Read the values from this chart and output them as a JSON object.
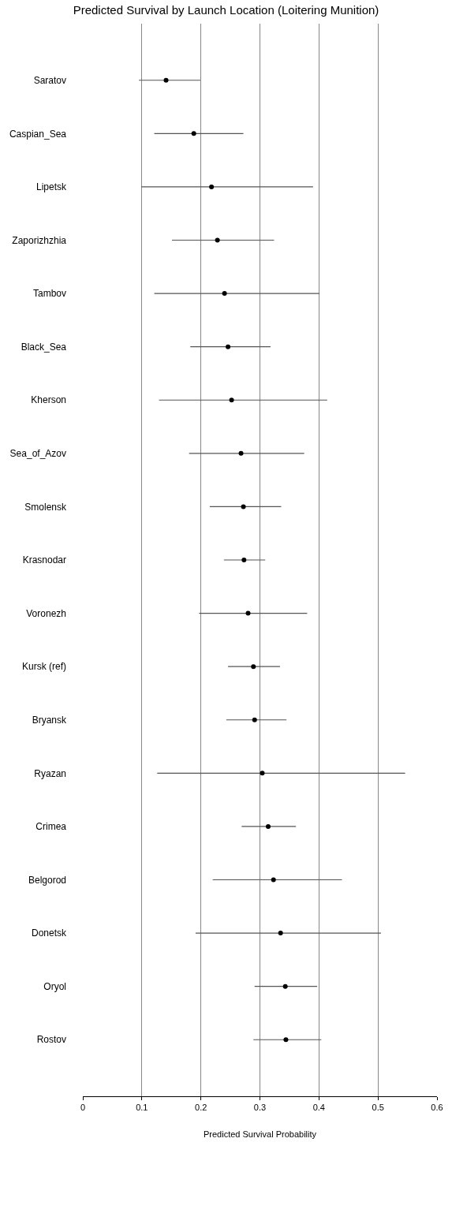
{
  "chart_data": {
    "type": "scatter",
    "title": "Predicted Survival by Launch Location (Loitering Munition)",
    "xlabel": "Predicted Survival Probability",
    "orientation": "horizontal",
    "categories": [
      "Saratov",
      "Caspian_Sea",
      "Lipetsk",
      "Zaporizhzhia",
      "Tambov",
      "Black_Sea",
      "Kherson",
      "Sea_of_Azov",
      "Smolensk",
      "Krasnodar",
      "Voronezh",
      "Kursk (ref)",
      "Bryansk",
      "Ryazan",
      "Crimea",
      "Belgorod",
      "Donetsk",
      "Oryol",
      "Rostov"
    ],
    "series": [
      {
        "color": "#000000",
        "values": [
          0.141,
          0.188,
          0.218,
          0.228,
          0.24,
          0.246,
          0.252,
          0.268,
          0.272,
          0.273,
          0.28,
          0.289,
          0.291,
          0.304,
          0.314,
          0.323,
          0.335,
          0.343,
          0.344
        ],
        "errors": [
          [
            0.095,
            0.199
          ],
          [
            0.121,
            0.272
          ],
          [
            0.099,
            0.39
          ],
          [
            0.151,
            0.324
          ],
          [
            0.121,
            0.401
          ],
          [
            0.182,
            0.318
          ],
          [
            0.129,
            0.414
          ],
          [
            0.18,
            0.375
          ],
          [
            0.215,
            0.336
          ],
          [
            0.239,
            0.309
          ],
          [
            0.197,
            0.38
          ],
          [
            0.246,
            0.334
          ],
          [
            0.243,
            0.345
          ],
          [
            0.126,
            0.546
          ],
          [
            0.269,
            0.361
          ],
          [
            0.22,
            0.439
          ],
          [
            0.191,
            0.505
          ],
          [
            0.291,
            0.397
          ],
          [
            0.289,
            0.404
          ]
        ]
      }
    ],
    "xlim": [
      0,
      0.6
    ],
    "xticks": [
      0,
      0.1,
      0.2,
      0.3,
      0.4,
      0.5,
      0.6
    ],
    "grid": "x",
    "marker": "circle"
  }
}
